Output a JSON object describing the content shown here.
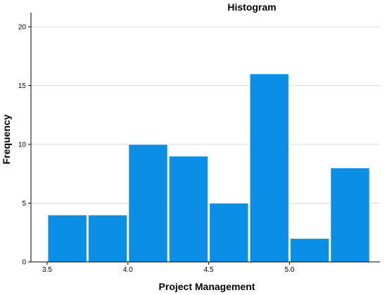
{
  "chart_data": {
    "type": "bar",
    "title": "Histogram",
    "xlabel": "Project Management",
    "ylabel": "Frequency",
    "bins": [
      {
        "start": 3.5,
        "end": 3.75,
        "count": 4
      },
      {
        "start": 3.75,
        "end": 4.0,
        "count": 4
      },
      {
        "start": 4.0,
        "end": 4.25,
        "count": 10
      },
      {
        "start": 4.25,
        "end": 4.5,
        "count": 9
      },
      {
        "start": 4.5,
        "end": 4.75,
        "count": 5
      },
      {
        "start": 4.75,
        "end": 5.0,
        "count": 16
      },
      {
        "start": 5.0,
        "end": 5.25,
        "count": 2
      },
      {
        "start": 5.25,
        "end": 5.5,
        "count": 8
      }
    ],
    "xticks": [
      {
        "value": 3.5,
        "label": "3.5"
      },
      {
        "value": 4.0,
        "label": "4.0"
      },
      {
        "value": 4.5,
        "label": "4.5"
      },
      {
        "value": 5.0,
        "label": "5.0"
      }
    ],
    "yticks": [
      {
        "value": 0,
        "label": "0"
      },
      {
        "value": 5,
        "label": "5"
      },
      {
        "value": 10,
        "label": "10"
      },
      {
        "value": 15,
        "label": "15"
      },
      {
        "value": 20,
        "label": "20"
      }
    ],
    "ylim": [
      0,
      20
    ],
    "grid": true,
    "bar_color": "#0b8fe6",
    "grid_color": "#d9d9d9"
  }
}
